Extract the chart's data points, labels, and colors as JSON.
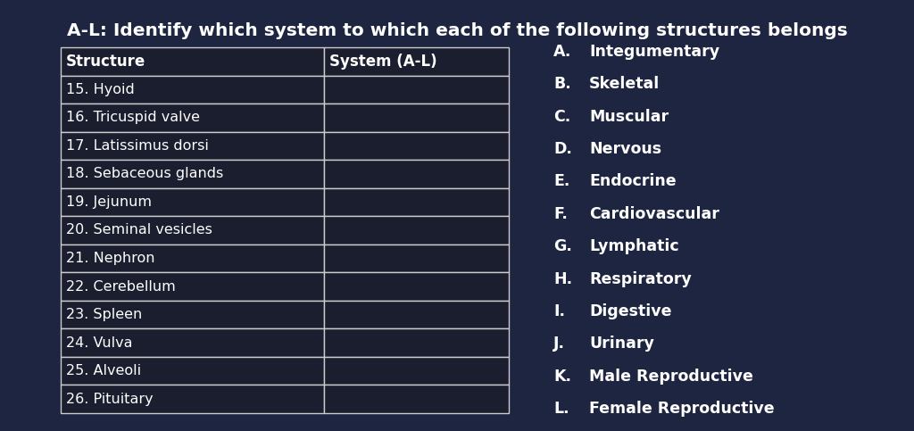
{
  "title": "A-L: Identify which system to which each of the following structures belongs",
  "table_headers": [
    "Structure",
    "System (A-L)"
  ],
  "table_rows": [
    "15. Hyoid",
    "16. Tricuspid valve",
    "17. Latissimus dorsi",
    "18. Sebaceous glands",
    "19. Jejunum",
    "20. Seminal vesicles",
    "21. Nephron",
    "22. Cerebellum",
    "23. Spleen",
    "24. Vulva",
    "25. Alveoli",
    "26. Pituitary"
  ],
  "legend_letters": [
    "A.",
    "B.",
    "C.",
    "D.",
    "E.",
    "F.",
    "G.",
    "H.",
    "I.",
    "J.",
    "K.",
    "L."
  ],
  "legend_names": [
    "Integumentary",
    "Skeletal",
    "Muscular",
    "Nervous",
    "Endocrine",
    "Cardiovascular",
    "Lymphatic",
    "Respiratory",
    "Digestive",
    "Urinary",
    "Male Reproductive",
    "Female Reproductive"
  ],
  "bg_color": "#1e2540",
  "table_cell_bg": "#1a1e2e",
  "header_bg": "#1a1e2e",
  "border_color": "#cccccc",
  "text_color": "#ffffff",
  "title_fontsize": 14.5,
  "header_fontsize": 12,
  "cell_fontsize": 11.5,
  "legend_fontsize": 12.5
}
